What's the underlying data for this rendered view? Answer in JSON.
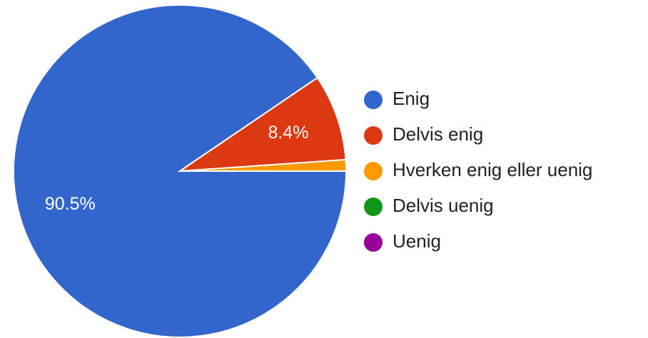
{
  "chart_data": {
    "type": "pie",
    "categories": [
      "Enig",
      "Delvis enig",
      "Hverken enig eller uenig",
      "Delvis uenig",
      "Uenig"
    ],
    "values": [
      90.5,
      8.4,
      1.1,
      0,
      0
    ],
    "value_labels": [
      "90.5%",
      "8.4%",
      null,
      null,
      null
    ],
    "colors": [
      "#3366cc",
      "#dc3912",
      "#ff9900",
      "#109618",
      "#990099"
    ],
    "legend": "right"
  }
}
